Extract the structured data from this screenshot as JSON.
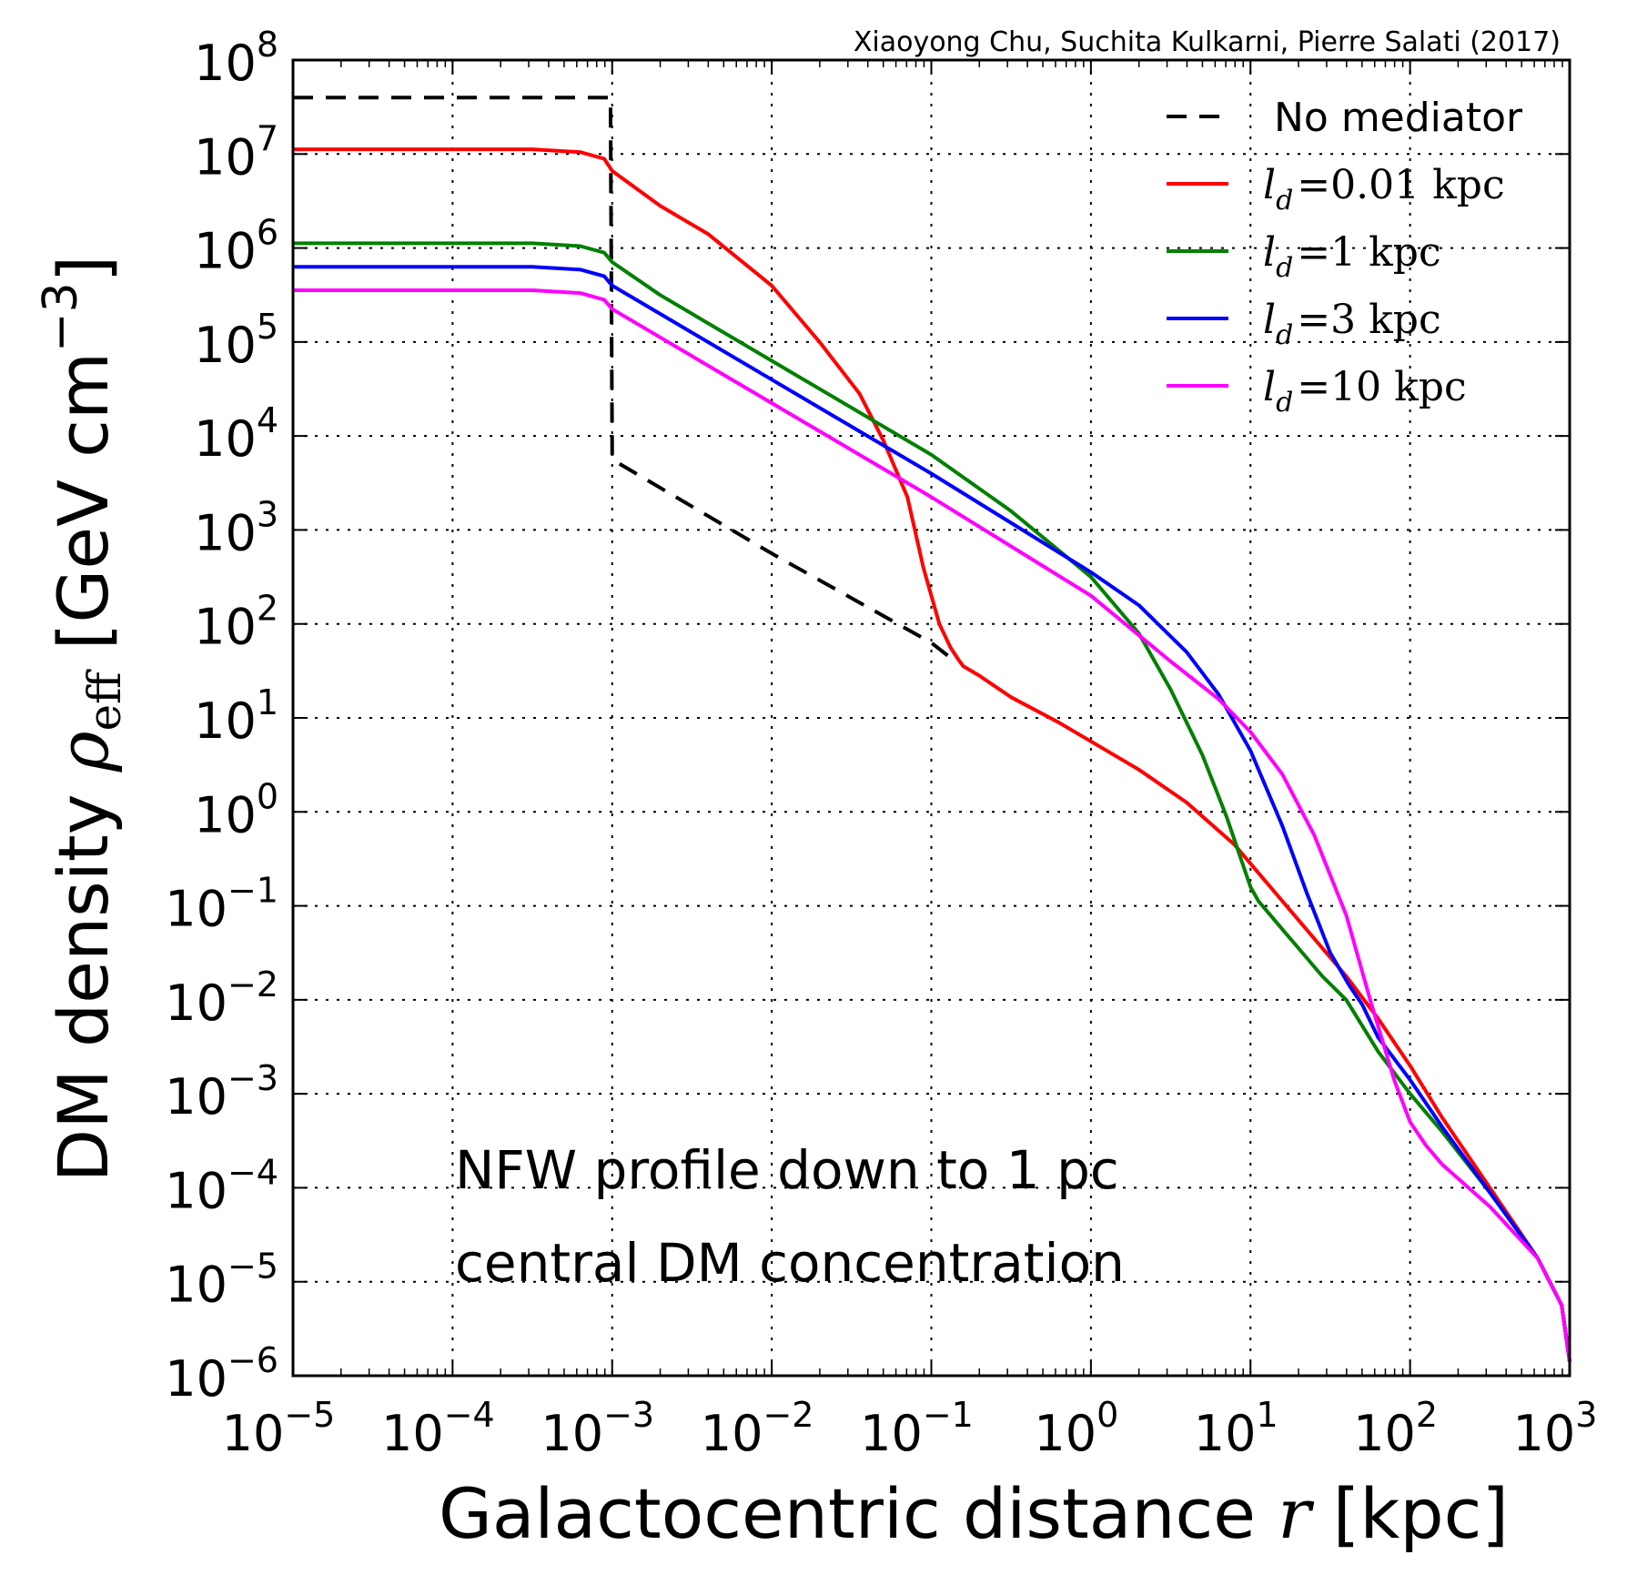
{
  "chart_data": {
    "type": "line",
    "credit": "Xiaoyong Chu, Suchita Kulkarni, Pierre Salati (2017)",
    "xlabel_text": "Galactocentric distance ",
    "xlabel_var": "r",
    "xlabel_unit": " [kpc]",
    "ylabel_text": "DM density ",
    "ylabel_var": "ρ",
    "ylabel_sub": "eff",
    "ylabel_unit_open": " [GeV cm",
    "ylabel_unit_exp": "−3",
    "ylabel_unit_close": "]",
    "xscale": "log",
    "yscale": "log",
    "xlim_exp": [
      -5,
      3
    ],
    "ylim_exp": [
      -6,
      8
    ],
    "x_tick_exponents": [
      "−5",
      "−4",
      "−3",
      "−2",
      "−1",
      "0",
      "1",
      "2",
      "3"
    ],
    "y_tick_exponents": [
      "−6",
      "−5",
      "−4",
      "−3",
      "−2",
      "−1",
      "0",
      "1",
      "2",
      "3",
      "4",
      "5",
      "6",
      "7",
      "8"
    ],
    "tick_base": "10",
    "grid": true,
    "legend_position": "top-right",
    "annotations": [
      "NFW profile down to 1 pc",
      "central DM concentration"
    ],
    "series": [
      {
        "name": "No mediator",
        "label_var": "",
        "label_sub": "",
        "label_rest": "No mediator",
        "color": "#000000",
        "dash": true,
        "log_x": [
          -5,
          -3.01,
          -3.01,
          -3.0,
          -2,
          -1,
          -0.85
        ],
        "log_y": [
          7.6,
          7.6,
          7.4,
          3.75,
          2.75,
          1.8,
          1.6
        ]
      },
      {
        "name": "l_d = 0.01 kpc",
        "label_var": "l",
        "label_sub": "d",
        "label_rest": "=0.01 kpc",
        "color": "#ff0000",
        "dash": false,
        "log_x": [
          -5,
          -3.5,
          -3.2,
          -3.05,
          -3.0,
          -2.7,
          -2.4,
          -2.0,
          -1.7,
          -1.45,
          -1.3,
          -1.15,
          -1.05,
          -0.95,
          -0.88,
          -0.83,
          -0.8,
          -0.7,
          -0.5,
          -0.2,
          0,
          0.3,
          0.6,
          0.9,
          1.1,
          1.3,
          1.6,
          1.8,
          2.0,
          2.2,
          2.5,
          2.8,
          2.95,
          3.0
        ],
        "log_y": [
          7.05,
          7.05,
          7.02,
          6.95,
          6.82,
          6.45,
          6.15,
          5.6,
          5.0,
          4.45,
          3.95,
          3.35,
          2.6,
          2.0,
          1.75,
          1.62,
          1.55,
          1.45,
          1.22,
          0.95,
          0.75,
          0.45,
          0.1,
          -0.35,
          -0.75,
          -1.15,
          -1.75,
          -2.2,
          -2.7,
          -3.25,
          -4.0,
          -4.75,
          -5.25,
          -5.85
        ]
      },
      {
        "name": "l_d = 1 kpc",
        "label_var": "l",
        "label_sub": "d",
        "label_rest": "=1 kpc",
        "color": "#008000",
        "dash": false,
        "log_x": [
          -5,
          -3.5,
          -3.2,
          -3.05,
          -3.0,
          -2.7,
          -2.0,
          -1.0,
          -0.5,
          0,
          0.3,
          0.5,
          0.7,
          0.85,
          0.95,
          1.0,
          1.05,
          1.1,
          1.2,
          1.3,
          1.45,
          1.6,
          1.8,
          2.0,
          2.2,
          2.5,
          2.8,
          2.95,
          3.0
        ],
        "log_y": [
          6.05,
          6.05,
          6.02,
          5.95,
          5.85,
          5.5,
          4.8,
          3.8,
          3.2,
          2.5,
          1.9,
          1.3,
          0.6,
          -0.05,
          -0.55,
          -0.8,
          -0.95,
          -1.05,
          -1.25,
          -1.45,
          -1.75,
          -2.0,
          -2.55,
          -3.0,
          -3.4,
          -4.05,
          -4.75,
          -5.25,
          -5.85
        ]
      },
      {
        "name": "l_d = 3 kpc",
        "label_var": "l",
        "label_sub": "d",
        "label_rest": "=3 kpc",
        "color": "#0000ff",
        "dash": false,
        "log_x": [
          -5,
          -3.5,
          -3.2,
          -3.05,
          -3.0,
          -2.7,
          -2.0,
          -1.0,
          0,
          0.3,
          0.6,
          0.8,
          1.0,
          1.2,
          1.35,
          1.5,
          1.62,
          1.7,
          1.8,
          2.0,
          2.2,
          2.5,
          2.8,
          2.95,
          3.0
        ],
        "log_y": [
          5.8,
          5.8,
          5.77,
          5.7,
          5.6,
          5.3,
          4.6,
          3.6,
          2.55,
          2.2,
          1.7,
          1.25,
          0.65,
          -0.15,
          -0.85,
          -1.5,
          -1.85,
          -2.05,
          -2.4,
          -2.85,
          -3.35,
          -4.05,
          -4.75,
          -5.25,
          -5.85
        ]
      },
      {
        "name": "l_d = 10 kpc",
        "label_var": "l",
        "label_sub": "d",
        "label_rest": "=10 kpc",
        "color": "#ff00ff",
        "dash": false,
        "log_x": [
          -5,
          -3.5,
          -3.2,
          -3.05,
          -3.0,
          -2.7,
          -2.0,
          -1.0,
          0,
          0.5,
          0.8,
          1.0,
          1.2,
          1.4,
          1.6,
          1.75,
          1.9,
          2.0,
          2.1,
          2.2,
          2.5,
          2.8,
          2.95,
          3.0
        ],
        "log_y": [
          5.55,
          5.55,
          5.52,
          5.45,
          5.35,
          5.05,
          4.35,
          3.35,
          2.3,
          1.6,
          1.2,
          0.85,
          0.4,
          -0.25,
          -1.1,
          -2.0,
          -2.85,
          -3.3,
          -3.55,
          -3.75,
          -4.2,
          -4.75,
          -5.25,
          -5.85
        ]
      }
    ]
  }
}
